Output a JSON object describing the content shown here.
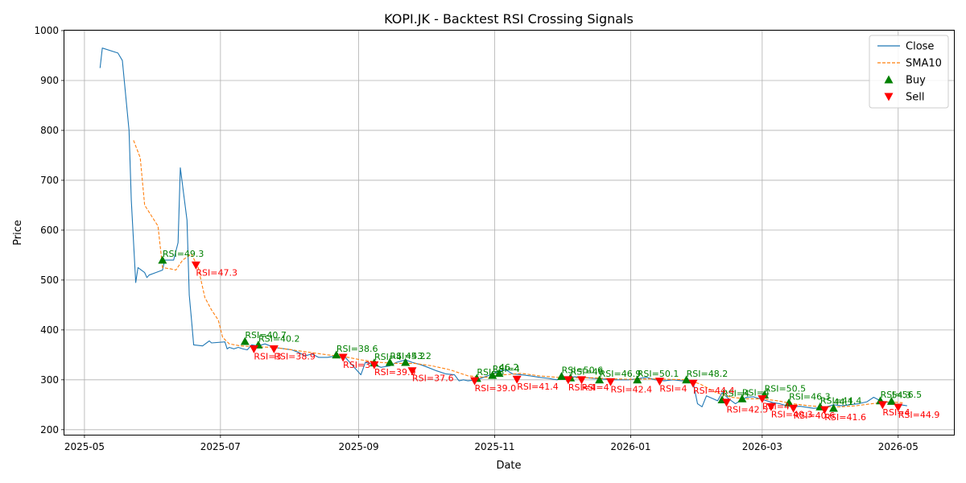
{
  "chart_data": {
    "type": "line",
    "title": "KOPI.JK - Backtest RSI Crossing Signals",
    "xlabel": "Date",
    "ylabel": "Price",
    "xlim": [
      "2025-04-22",
      "2026-05-26"
    ],
    "ylim": [
      190,
      1000
    ],
    "grid": true,
    "legend_position": "top-right",
    "x_ticks": [
      "2025-05",
      "2025-07",
      "2025-09",
      "2025-11",
      "2026-01",
      "2026-03",
      "2026-05"
    ],
    "y_ticks": [
      200,
      300,
      400,
      500,
      600,
      700,
      800,
      900,
      1000
    ],
    "legend": [
      {
        "label": "Close",
        "kind": "line",
        "color": "#1f77b4"
      },
      {
        "label": "SMA10",
        "kind": "dashed",
        "color": "#ff7f0e"
      },
      {
        "label": "Buy",
        "kind": "up",
        "color": "#008000"
      },
      {
        "label": "Sell",
        "kind": "down",
        "color": "#ff0000"
      }
    ],
    "series": [
      {
        "name": "Close",
        "color": "#1f77b4",
        "style": "solid",
        "points": [
          [
            "2025-05-08",
            925
          ],
          [
            "2025-05-09",
            965
          ],
          [
            "2025-05-16",
            955
          ],
          [
            "2025-05-18",
            940
          ],
          [
            "2025-05-21",
            800
          ],
          [
            "2025-05-22",
            660
          ],
          [
            "2025-05-24",
            495
          ],
          [
            "2025-05-25",
            525
          ],
          [
            "2025-05-28",
            515
          ],
          [
            "2025-05-29",
            505
          ],
          [
            "2025-05-30",
            510
          ],
          [
            "2025-06-02",
            515
          ],
          [
            "2025-06-05",
            520
          ],
          [
            "2025-06-06",
            540
          ],
          [
            "2025-06-10",
            540
          ],
          [
            "2025-06-12",
            575
          ],
          [
            "2025-06-13",
            725
          ],
          [
            "2025-06-16",
            620
          ],
          [
            "2025-06-17",
            470
          ],
          [
            "2025-06-18",
            420
          ],
          [
            "2025-06-19",
            370
          ],
          [
            "2025-06-23",
            368
          ],
          [
            "2025-06-26",
            378
          ],
          [
            "2025-06-27",
            374
          ],
          [
            "2025-07-03",
            376
          ],
          [
            "2025-07-04",
            362
          ],
          [
            "2025-07-05",
            365
          ],
          [
            "2025-07-07",
            362
          ],
          [
            "2025-07-09",
            365
          ],
          [
            "2025-07-11",
            362
          ],
          [
            "2025-07-13",
            360
          ],
          [
            "2025-07-15",
            370
          ],
          [
            "2025-07-18",
            368
          ],
          [
            "2025-07-21",
            372
          ],
          [
            "2025-07-25",
            365
          ],
          [
            "2025-07-30",
            362
          ],
          [
            "2025-08-02",
            360
          ],
          [
            "2025-08-05",
            355
          ],
          [
            "2025-08-08",
            348
          ],
          [
            "2025-08-11",
            352
          ],
          [
            "2025-08-14",
            345
          ],
          [
            "2025-08-18",
            345
          ],
          [
            "2025-08-22",
            348
          ],
          [
            "2025-08-26",
            345
          ],
          [
            "2025-08-29",
            330
          ],
          [
            "2025-09-02",
            310
          ],
          [
            "2025-09-04",
            335
          ],
          [
            "2025-09-08",
            330
          ],
          [
            "2025-09-11",
            325
          ],
          [
            "2025-09-15",
            328
          ],
          [
            "2025-09-18",
            335
          ],
          [
            "2025-09-22",
            340
          ],
          [
            "2025-09-25",
            335
          ],
          [
            "2025-09-29",
            330
          ],
          [
            "2025-10-02",
            325
          ],
          [
            "2025-10-06",
            318
          ],
          [
            "2025-10-10",
            312
          ],
          [
            "2025-10-14",
            310
          ],
          [
            "2025-10-16",
            298
          ],
          [
            "2025-10-18",
            300
          ],
          [
            "2025-10-20",
            298
          ],
          [
            "2025-10-24",
            300
          ],
          [
            "2025-10-27",
            305
          ],
          [
            "2025-10-30",
            310
          ],
          [
            "2025-11-03",
            318
          ],
          [
            "2025-11-06",
            320
          ],
          [
            "2025-11-09",
            312
          ],
          [
            "2025-11-13",
            310
          ],
          [
            "2025-11-17",
            308
          ],
          [
            "2025-11-21",
            305
          ],
          [
            "2025-11-25",
            303
          ],
          [
            "2025-11-29",
            300
          ],
          [
            "2025-12-03",
            305
          ],
          [
            "2025-12-07",
            306
          ],
          [
            "2025-12-11",
            305
          ],
          [
            "2025-12-15",
            303
          ],
          [
            "2025-12-19",
            302
          ],
          [
            "2025-12-23",
            300
          ],
          [
            "2025-12-27",
            300
          ],
          [
            "2025-12-31",
            300
          ],
          [
            "2026-01-04",
            302
          ],
          [
            "2026-01-08",
            305
          ],
          [
            "2026-01-12",
            300
          ],
          [
            "2026-01-16",
            298
          ],
          [
            "2026-01-20",
            300
          ],
          [
            "2026-01-24",
            298
          ],
          [
            "2026-01-27",
            300
          ],
          [
            "2026-01-29",
            295
          ],
          [
            "2026-01-31",
            252
          ],
          [
            "2026-02-02",
            246
          ],
          [
            "2026-02-04",
            268
          ],
          [
            "2026-02-07",
            262
          ],
          [
            "2026-02-09",
            258
          ],
          [
            "2026-02-11",
            274
          ],
          [
            "2026-02-14",
            262
          ],
          [
            "2026-02-17",
            252
          ],
          [
            "2026-02-19",
            258
          ],
          [
            "2026-02-22",
            265
          ],
          [
            "2026-02-25",
            266
          ],
          [
            "2026-02-28",
            262
          ],
          [
            "2026-03-03",
            258
          ],
          [
            "2026-03-06",
            254
          ],
          [
            "2026-03-09",
            252
          ],
          [
            "2026-03-12",
            248
          ],
          [
            "2026-03-15",
            246
          ],
          [
            "2026-03-18",
            247
          ],
          [
            "2026-03-21",
            245
          ],
          [
            "2026-03-24",
            243
          ],
          [
            "2026-03-27",
            244
          ],
          [
            "2026-03-30",
            246
          ],
          [
            "2026-04-02",
            250
          ],
          [
            "2026-04-06",
            248
          ],
          [
            "2026-04-09",
            250
          ],
          [
            "2026-04-13",
            252
          ],
          [
            "2026-04-17",
            256
          ],
          [
            "2026-04-20",
            265
          ],
          [
            "2026-04-23",
            258
          ],
          [
            "2026-04-26",
            255
          ],
          [
            "2026-04-29",
            252
          ],
          [
            "2026-05-02",
            250
          ],
          [
            "2026-05-05",
            248
          ]
        ]
      },
      {
        "name": "SMA10",
        "color": "#ff7f0e",
        "style": "dashed",
        "points": [
          [
            "2025-05-23",
            780
          ],
          [
            "2025-05-26",
            745
          ],
          [
            "2025-05-28",
            650
          ],
          [
            "2025-06-03",
            608
          ],
          [
            "2025-06-05",
            525
          ],
          [
            "2025-06-09",
            522
          ],
          [
            "2025-06-11",
            520
          ],
          [
            "2025-06-14",
            540
          ],
          [
            "2025-06-18",
            552
          ],
          [
            "2025-06-21",
            525
          ],
          [
            "2025-06-24",
            465
          ],
          [
            "2025-06-27",
            440
          ],
          [
            "2025-06-30",
            420
          ],
          [
            "2025-07-02",
            385
          ],
          [
            "2025-07-05",
            372
          ],
          [
            "2025-07-10",
            368
          ],
          [
            "2025-07-18",
            366
          ],
          [
            "2025-07-25",
            365
          ],
          [
            "2025-08-02",
            360
          ],
          [
            "2025-08-10",
            355
          ],
          [
            "2025-08-18",
            350
          ],
          [
            "2025-08-26",
            346
          ],
          [
            "2025-09-02",
            340
          ],
          [
            "2025-09-10",
            335
          ],
          [
            "2025-09-18",
            333
          ],
          [
            "2025-09-26",
            333
          ],
          [
            "2025-10-04",
            328
          ],
          [
            "2025-10-12",
            320
          ],
          [
            "2025-10-20",
            308
          ],
          [
            "2025-10-28",
            305
          ],
          [
            "2025-11-05",
            310
          ],
          [
            "2025-11-13",
            313
          ],
          [
            "2025-11-21",
            308
          ],
          [
            "2025-11-29",
            305
          ],
          [
            "2025-12-07",
            304
          ],
          [
            "2025-12-15",
            304
          ],
          [
            "2025-12-23",
            302
          ],
          [
            "2026-01-01",
            301
          ],
          [
            "2026-01-10",
            302
          ],
          [
            "2026-01-18",
            301
          ],
          [
            "2026-01-26",
            300
          ],
          [
            "2026-02-01",
            292
          ],
          [
            "2026-02-08",
            275
          ],
          [
            "2026-02-15",
            265
          ],
          [
            "2026-02-22",
            262
          ],
          [
            "2026-03-01",
            262
          ],
          [
            "2026-03-08",
            258
          ],
          [
            "2026-03-15",
            252
          ],
          [
            "2026-03-22",
            248
          ],
          [
            "2026-03-29",
            246
          ],
          [
            "2026-04-05",
            246
          ],
          [
            "2026-04-12",
            248
          ],
          [
            "2026-04-19",
            252
          ],
          [
            "2026-04-26",
            256
          ],
          [
            "2026-05-03",
            254
          ]
        ]
      }
    ],
    "buy_signals": [
      {
        "date": "2025-06-05",
        "price": 540,
        "label": "RSI=49.3"
      },
      {
        "date": "2025-07-12",
        "price": 377,
        "label": "RSI=40.7"
      },
      {
        "date": "2025-07-18",
        "price": 370,
        "label": "RSI=40.2"
      },
      {
        "date": "2025-08-22",
        "price": 350,
        "label": "RSI=38.6"
      },
      {
        "date": "2025-09-08",
        "price": 334,
        "label": "RSI=4"
      },
      {
        "date": "2025-09-15",
        "price": 335,
        "label": "RSI=43.2"
      },
      {
        "date": "2025-09-22",
        "price": 335,
        "label": "45.2"
      },
      {
        "date": "2025-10-24",
        "price": 303,
        "label": "RSI=3"
      },
      {
        "date": "2025-10-31",
        "price": 309,
        "label": "RSI=4"
      },
      {
        "date": "2025-11-03",
        "price": 313,
        "label": "46.2"
      },
      {
        "date": "2025-12-01",
        "price": 307,
        "label": "RSI=50.6"
      },
      {
        "date": "2025-12-05",
        "price": 304,
        "label": "RSI=46"
      },
      {
        "date": "2025-12-18",
        "price": 300,
        "label": "RSI=46.9"
      },
      {
        "date": "2026-01-04",
        "price": 300,
        "label": "RSI=50.1"
      },
      {
        "date": "2026-01-26",
        "price": 300,
        "label": "RSI=48.2"
      },
      {
        "date": "2026-02-11",
        "price": 260,
        "label": "RSI=4"
      },
      {
        "date": "2026-02-20",
        "price": 262,
        "label": "RSI=4"
      },
      {
        "date": "2026-03-02",
        "price": 270,
        "label": "RSI=50.5"
      },
      {
        "date": "2026-03-13",
        "price": 254,
        "label": "RSI=46.3"
      },
      {
        "date": "2026-03-27",
        "price": 246,
        "label": "RSI=44.4"
      },
      {
        "date": "2026-04-02",
        "price": 243,
        "label": "44.1"
      },
      {
        "date": "2026-04-23",
        "price": 258,
        "label": "RSI=56.5"
      },
      {
        "date": "2026-04-28",
        "price": 257,
        "label": "54.3"
      }
    ],
    "sell_signals": [
      {
        "date": "2025-06-20",
        "price": 530,
        "label": "RSI=47.3"
      },
      {
        "date": "2025-07-16",
        "price": 362,
        "label": "RSI=3"
      },
      {
        "date": "2025-07-25",
        "price": 362,
        "label": "RSI=38.9"
      },
      {
        "date": "2025-08-25",
        "price": 345,
        "label": "RSI=3"
      },
      {
        "date": "2025-09-08",
        "price": 330,
        "label": "RSI=39.9"
      },
      {
        "date": "2025-09-25",
        "price": 318,
        "label": "RSI=37.6"
      },
      {
        "date": "2025-10-23",
        "price": 298,
        "label": "RSI=39.0"
      },
      {
        "date": "2025-11-11",
        "price": 301,
        "label": "RSI=41.4"
      },
      {
        "date": "2025-12-04",
        "price": 300,
        "label": "RSI=4"
      },
      {
        "date": "2025-12-10",
        "price": 300,
        "label": "RSI=4"
      },
      {
        "date": "2025-12-23",
        "price": 296,
        "label": "RSI=42.4"
      },
      {
        "date": "2026-01-14",
        "price": 297,
        "label": "RSI=4"
      },
      {
        "date": "2026-01-29",
        "price": 293,
        "label": "RSI=44.4"
      },
      {
        "date": "2026-02-13",
        "price": 255,
        "label": "RSI=42.5"
      },
      {
        "date": "2026-03-01",
        "price": 262,
        "label": "RSI=4"
      },
      {
        "date": "2026-03-05",
        "price": 246,
        "label": "RSI=40.3"
      },
      {
        "date": "2026-03-15",
        "price": 243,
        "label": "RSI=40.6"
      },
      {
        "date": "2026-03-29",
        "price": 240,
        "label": "RSI=41.6"
      },
      {
        "date": "2026-04-24",
        "price": 250,
        "label": "RSI=4"
      },
      {
        "date": "2026-05-01",
        "price": 245,
        "label": "RSI=44.9"
      }
    ]
  }
}
